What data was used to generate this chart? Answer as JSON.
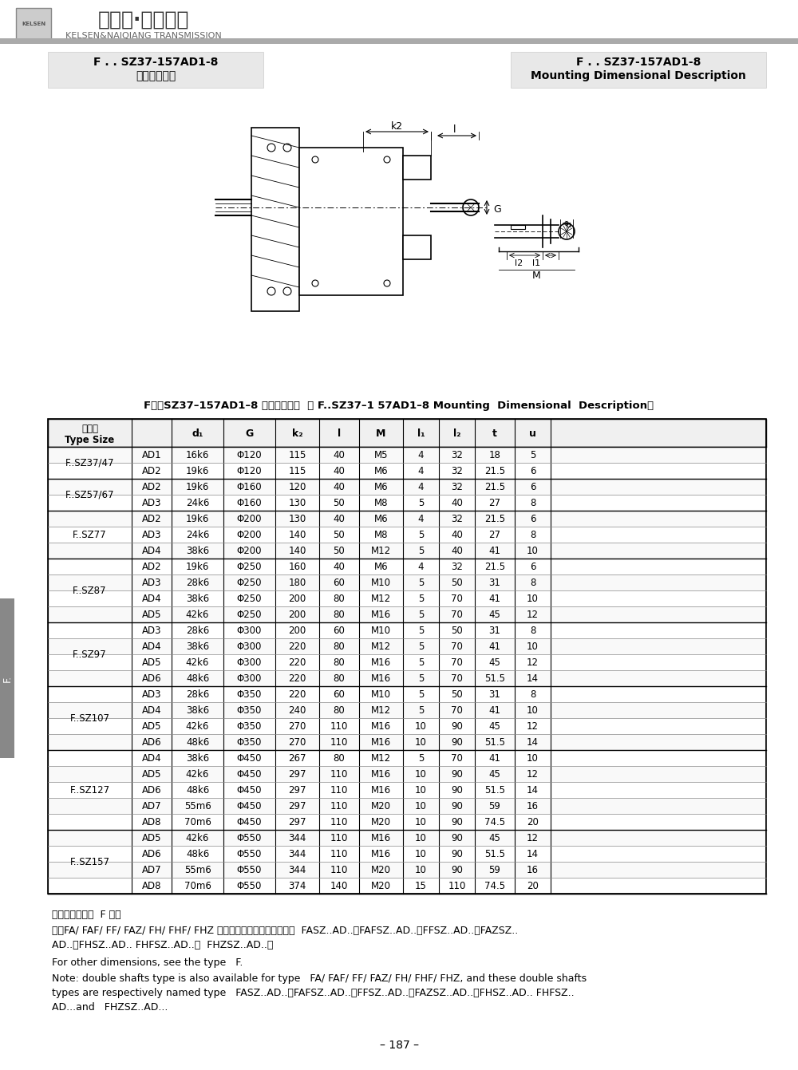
{
  "page_title_cn": "F . . SZ37-157AD1-8",
  "page_subtitle_cn": "安装结构尺寸",
  "page_title_en": "F . . SZ37-157AD1-8",
  "page_subtitle_en": "Mounting Dimensional Description",
  "brand_cn": "凯尔森·耐强传动",
  "brand_en": "KELSEN&NAIQIANG TRANSMISSION",
  "table_title": "F．．SZ37–157AD1–8 安装结构尺寸  （ F..SZ37–1 57AD1–8 Mounting  Dimensional  Description）",
  "col_headers": [
    "机型号\nType Size",
    "",
    "d₁",
    "G",
    "k₂",
    "l",
    "M",
    "l₁",
    "l₂",
    "t",
    "u"
  ],
  "rows": [
    [
      "F..SZ37/47",
      "AD1",
      "16k6",
      "Φ120",
      "115",
      "40",
      "M5",
      "4",
      "32",
      "18",
      "5"
    ],
    [
      "",
      "AD2",
      "19k6",
      "Φ120",
      "115",
      "40",
      "M6",
      "4",
      "32",
      "21.5",
      "6"
    ],
    [
      "F..SZ57/67",
      "AD2",
      "19k6",
      "Φ160",
      "120",
      "40",
      "M6",
      "4",
      "32",
      "21.5",
      "6"
    ],
    [
      "",
      "AD3",
      "24k6",
      "Φ160",
      "130",
      "50",
      "M8",
      "5",
      "40",
      "27",
      "8"
    ],
    [
      "F..SZ77",
      "AD2",
      "19k6",
      "Φ200",
      "130",
      "40",
      "M6",
      "4",
      "32",
      "21.5",
      "6"
    ],
    [
      "",
      "AD3",
      "24k6",
      "Φ200",
      "140",
      "50",
      "M8",
      "5",
      "40",
      "27",
      "8"
    ],
    [
      "",
      "AD4",
      "38k6",
      "Φ200",
      "140",
      "50",
      "M12",
      "5",
      "40",
      "41",
      "10"
    ],
    [
      "F..SZ87",
      "AD2",
      "19k6",
      "Φ250",
      "160",
      "40",
      "M6",
      "4",
      "32",
      "21.5",
      "6"
    ],
    [
      "",
      "AD3",
      "28k6",
      "Φ250",
      "180",
      "60",
      "M10",
      "5",
      "50",
      "31",
      "8"
    ],
    [
      "",
      "AD4",
      "38k6",
      "Φ250",
      "200",
      "80",
      "M12",
      "5",
      "70",
      "41",
      "10"
    ],
    [
      "",
      "AD5",
      "42k6",
      "Φ250",
      "200",
      "80",
      "M16",
      "5",
      "70",
      "45",
      "12"
    ],
    [
      "F..SZ97",
      "AD3",
      "28k6",
      "Φ300",
      "200",
      "60",
      "M10",
      "5",
      "50",
      "31",
      "8"
    ],
    [
      "",
      "AD4",
      "38k6",
      "Φ300",
      "220",
      "80",
      "M12",
      "5",
      "70",
      "41",
      "10"
    ],
    [
      "",
      "AD5",
      "42k6",
      "Φ300",
      "220",
      "80",
      "M16",
      "5",
      "70",
      "45",
      "12"
    ],
    [
      "",
      "AD6",
      "48k6",
      "Φ300",
      "220",
      "80",
      "M16",
      "5",
      "70",
      "51.5",
      "14"
    ],
    [
      "F..SZ107",
      "AD3",
      "28k6",
      "Φ350",
      "220",
      "60",
      "M10",
      "5",
      "50",
      "31",
      "8"
    ],
    [
      "",
      "AD4",
      "38k6",
      "Φ350",
      "240",
      "80",
      "M12",
      "5",
      "70",
      "41",
      "10"
    ],
    [
      "",
      "AD5",
      "42k6",
      "Φ350",
      "270",
      "110",
      "M16",
      "10",
      "90",
      "45",
      "12"
    ],
    [
      "",
      "AD6",
      "48k6",
      "Φ350",
      "270",
      "110",
      "M16",
      "10",
      "90",
      "51.5",
      "14"
    ],
    [
      "F..SZ127",
      "AD4",
      "38k6",
      "Φ450",
      "267",
      "80",
      "M12",
      "5",
      "70",
      "41",
      "10"
    ],
    [
      "",
      "AD5",
      "42k6",
      "Φ450",
      "297",
      "110",
      "M16",
      "10",
      "90",
      "45",
      "12"
    ],
    [
      "",
      "AD6",
      "48k6",
      "Φ450",
      "297",
      "110",
      "M16",
      "10",
      "90",
      "51.5",
      "14"
    ],
    [
      "",
      "AD7",
      "55m6",
      "Φ450",
      "297",
      "110",
      "M20",
      "10",
      "90",
      "59",
      "16"
    ],
    [
      "",
      "AD8",
      "70m6",
      "Φ450",
      "297",
      "110",
      "M20",
      "10",
      "90",
      "74.5",
      "20"
    ],
    [
      "F..SZ157",
      "AD5",
      "42k6",
      "Φ550",
      "344",
      "110",
      "M16",
      "10",
      "90",
      "45",
      "12"
    ],
    [
      "",
      "AD6",
      "48k6",
      "Φ550",
      "344",
      "110",
      "M16",
      "10",
      "90",
      "51.5",
      "14"
    ],
    [
      "",
      "AD7",
      "55m6",
      "Φ550",
      "344",
      "110",
      "M20",
      "10",
      "90",
      "59",
      "16"
    ],
    [
      "",
      "AD8",
      "70m6",
      "Φ550",
      "374",
      "140",
      "M20",
      "15",
      "110",
      "74.5",
      "20"
    ]
  ],
  "note_cn1": "其它尺寸请参照  F 型。",
  "note_cn2": "注：FA/ FAF/ FF/ FAZ/ FH/ FHF/ FHZ 均可采用双轴型，并分别记为  FASZ..AD..、FAFSZ..AD..、FFSZ..AD..、FAZSZ..",
  "note_cn3": "AD..、FHSZ..AD.. FHFSZ..AD..和  FHZSZ..AD..。",
  "note_en1": "For other dimensions, see the type   F.",
  "note_en2": "Note: double shafts type is also available for type   FA/ FAF/ FF/ FAZ/ FH/ FHF/ FHZ, and these double shafts",
  "note_en3": "types are respectively named type   FASZ..AD..、FAFSZ..AD..、FFSZ..AD..、FAZSZ..AD..、FHSZ..AD.. FHFSZ..",
  "note_en4": "AD...and   FHZSZ..AD...",
  "page_num": "– 187 –",
  "bg_color": "#ffffff",
  "header_bg": "#e8e8e8",
  "table_border": "#000000",
  "text_color": "#000000",
  "gray_bar": "#aaaaaa",
  "side_tab_color": "#888888",
  "left_box_bg": "#e8e8e8",
  "right_box_bg": "#e8e8e8"
}
